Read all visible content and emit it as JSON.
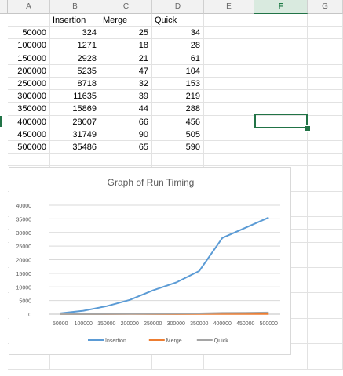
{
  "columns": [
    "A",
    "B",
    "C",
    "D",
    "E",
    "F",
    "G"
  ],
  "selected_column": "F",
  "table": {
    "headers": [
      "",
      "Insertion",
      "Merge",
      "Quick"
    ],
    "rows": [
      [
        "50000",
        "324",
        "25",
        "34"
      ],
      [
        "100000",
        "1271",
        "18",
        "28"
      ],
      [
        "150000",
        "2928",
        "21",
        "61"
      ],
      [
        "200000",
        "5235",
        "47",
        "104"
      ],
      [
        "250000",
        "8718",
        "32",
        "153"
      ],
      [
        "300000",
        "11635",
        "39",
        "219"
      ],
      [
        "350000",
        "15869",
        "44",
        "288"
      ],
      [
        "400000",
        "28007",
        "66",
        "456"
      ],
      [
        "450000",
        "31749",
        "90",
        "505"
      ],
      [
        "500000",
        "35486",
        "65",
        "590"
      ]
    ]
  },
  "chart_data": {
    "type": "line",
    "title": "Graph of Run Timing",
    "x": [
      50000,
      100000,
      150000,
      200000,
      250000,
      300000,
      350000,
      400000,
      450000,
      500000
    ],
    "x_tick_labels": [
      "50000",
      "100000",
      "150000",
      "200000",
      "250000",
      "300000",
      "350000",
      "400000",
      "450000",
      "500000"
    ],
    "y_tick_labels": [
      "0",
      "5000",
      "10000",
      "15000",
      "20000",
      "25000",
      "30000",
      "35000",
      "40000"
    ],
    "ylim": [
      0,
      40000
    ],
    "grid": true,
    "legend_position": "bottom",
    "series": [
      {
        "name": "Insertion",
        "color": "#5b9bd5",
        "values": [
          324,
          1271,
          2928,
          5235,
          8718,
          11635,
          15869,
          28007,
          31749,
          35486
        ]
      },
      {
        "name": "Merge",
        "color": "#ed7d31",
        "values": [
          25,
          18,
          21,
          47,
          32,
          39,
          44,
          66,
          90,
          65
        ]
      },
      {
        "name": "Quick",
        "color": "#a5a5a5",
        "values": [
          34,
          28,
          61,
          104,
          153,
          219,
          288,
          456,
          505,
          590
        ]
      }
    ]
  }
}
